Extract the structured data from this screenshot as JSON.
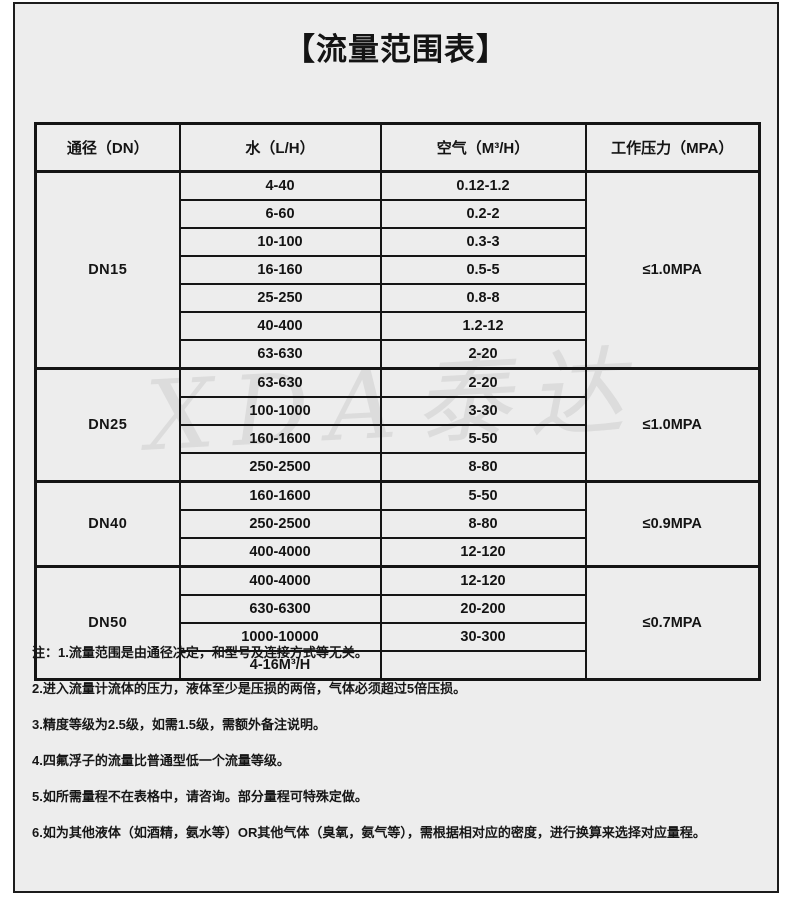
{
  "page": {
    "title": "【流量范围表】",
    "watermark": "XDA泰达"
  },
  "table": {
    "headers": [
      "通径（DN）",
      "水（L/H）",
      "空气（M³/H）",
      "工作压力（MPA）"
    ],
    "groups": [
      {
        "dn": "DN15",
        "pressure": "≤1.0MPA",
        "rows": [
          [
            "4-40",
            "0.12-1.2"
          ],
          [
            "6-60",
            "0.2-2"
          ],
          [
            "10-100",
            "0.3-3"
          ],
          [
            "16-160",
            "0.5-5"
          ],
          [
            "25-250",
            "0.8-8"
          ],
          [
            "40-400",
            "1.2-12"
          ],
          [
            "63-630",
            "2-20"
          ]
        ]
      },
      {
        "dn": "DN25",
        "pressure": "≤1.0MPA",
        "rows": [
          [
            "63-630",
            "2-20"
          ],
          [
            "100-1000",
            "3-30"
          ],
          [
            "160-1600",
            "5-50"
          ],
          [
            "250-2500",
            "8-80"
          ]
        ]
      },
      {
        "dn": "DN40",
        "pressure": "≤0.9MPA",
        "rows": [
          [
            "160-1600",
            "5-50"
          ],
          [
            "250-2500",
            "8-80"
          ],
          [
            "400-4000",
            "12-120"
          ]
        ]
      },
      {
        "dn": "DN50",
        "pressure": "≤0.7MPA",
        "rows": [
          [
            "400-4000",
            "12-120"
          ],
          [
            "630-6300",
            "20-200"
          ],
          [
            "1000-10000",
            "30-300"
          ],
          [
            "4-16M³/H",
            ""
          ]
        ]
      }
    ]
  },
  "notes": {
    "prefix": "注：",
    "items": [
      "1.流量范围是由通径决定，和型号及连接方式等无关。",
      "2.进入流量计流体的压力，液体至少是压损的两倍，气体必须超过5倍压损。",
      "3.精度等级为2.5级，如需1.5级，需额外备注说明。",
      "4.四氟浮子的流量比普通型低一个流量等级。",
      "5.如所需量程不在表格中，请咨询。部分量程可特殊定做。",
      "6.如为其他液体（如酒精，氨水等）OR其他气体（臭氧，氨气等），需根据相对应的密度，进行换算来选择对应量程。"
    ]
  },
  "colors": {
    "panel_background": "#ededed",
    "border": "#151515",
    "text": "#141414"
  }
}
